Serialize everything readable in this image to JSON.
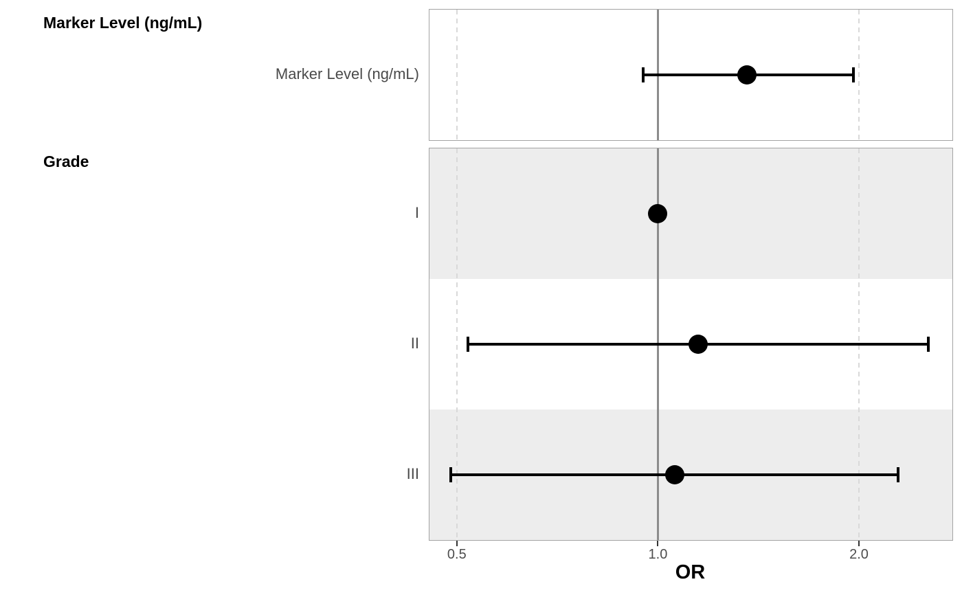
{
  "chart_data": {
    "type": "forest",
    "title": "",
    "xlabel": "OR",
    "ylabel": "",
    "x_scale": "log",
    "x_range": [
      0.455,
      2.76
    ],
    "x_ticks": [
      {
        "value": 0.5,
        "label": "0.5"
      },
      {
        "value": 1.0,
        "label": "1.0"
      },
      {
        "value": 2.0,
        "label": "2.0"
      }
    ],
    "reference_line": 1.0,
    "dashed_gridlines": [
      0.5,
      2.0
    ],
    "groups": [
      {
        "header": "Marker Level (ng/mL)",
        "rows": [
          {
            "label": "Marker Level (ng/mL)",
            "or": 1.36,
            "ci_low": 0.95,
            "ci_high": 1.96,
            "reference": false,
            "striped": false
          }
        ]
      },
      {
        "header": "Grade",
        "rows": [
          {
            "label": "I",
            "or": 1.0,
            "ci_low": null,
            "ci_high": null,
            "reference": true,
            "striped": true
          },
          {
            "label": "II",
            "or": 1.15,
            "ci_low": 0.52,
            "ci_high": 2.54,
            "reference": false,
            "striped": false
          },
          {
            "label": "III",
            "or": 1.06,
            "ci_low": 0.49,
            "ci_high": 2.29,
            "reference": false,
            "striped": true
          }
        ]
      }
    ],
    "colors": {
      "point": "#000000",
      "error_bar": "#000000",
      "reference_line_color": "#8c8c8c",
      "dashed_line_color": "#d9d9d9",
      "stripe": "#ededed",
      "panel_border": "#a3a3a3",
      "axis_text": "#4d4d4d",
      "row_label_text": "#4a4a4a",
      "header_text": "#000000"
    }
  }
}
